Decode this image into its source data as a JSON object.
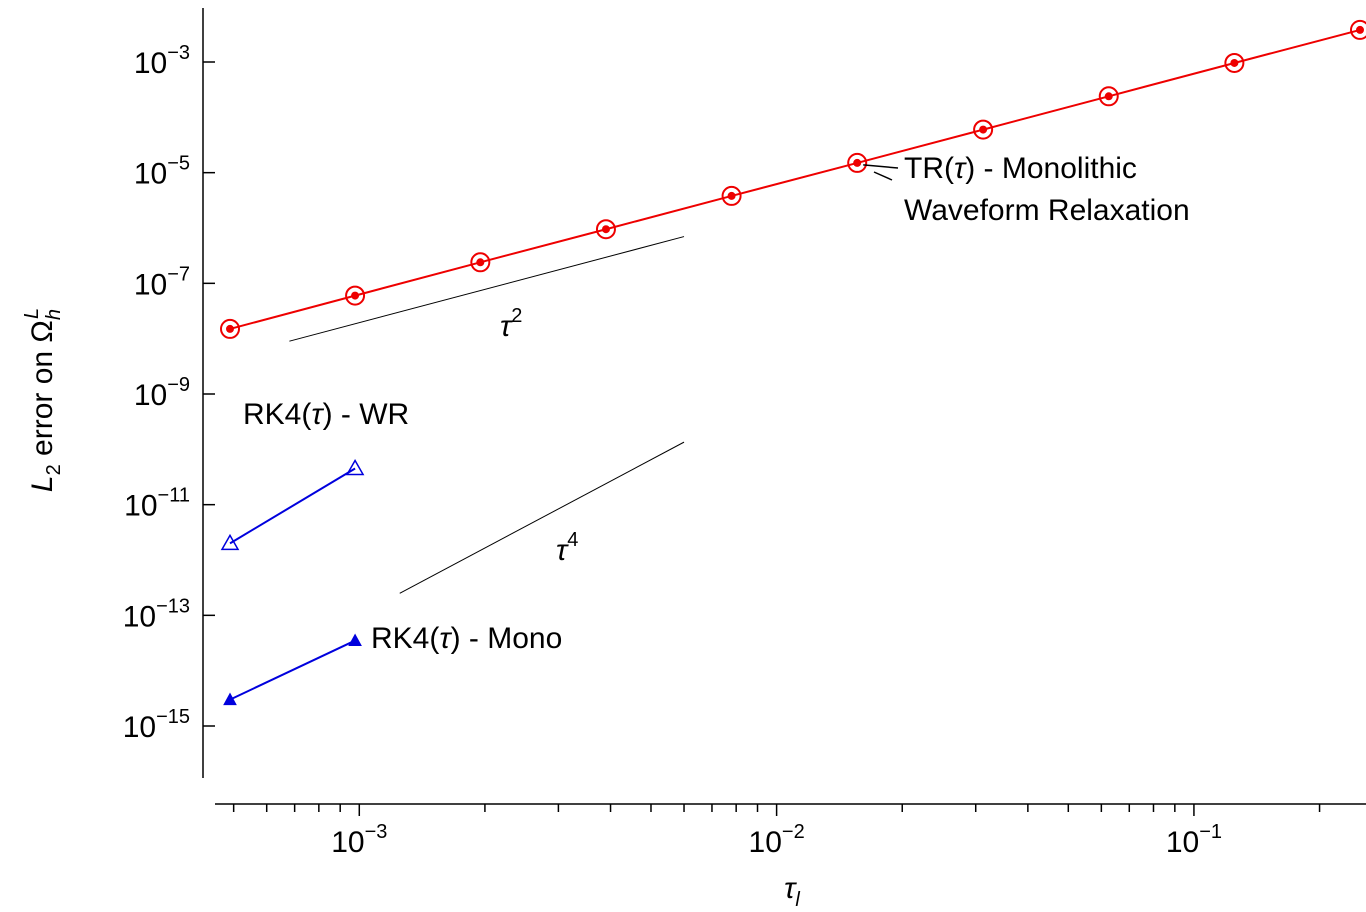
{
  "chart_data": {
    "type": "scatter",
    "title": "",
    "xlabel": "τ_l",
    "ylabel": "L_2 error on Ω_h^L",
    "xscale": "log",
    "yscale": "log",
    "xlim": [
      0.00044,
      0.26
    ],
    "ylim": [
      3e-17,
      0.01
    ],
    "grid": false,
    "x_ticks": [
      {
        "value": 0.001,
        "base": "10",
        "exp": "−3"
      },
      {
        "value": 0.01,
        "base": "10",
        "exp": "−2"
      },
      {
        "value": 0.1,
        "base": "10",
        "exp": "−1"
      }
    ],
    "y_ticks": [
      {
        "value": 0.001,
        "base": "10",
        "exp": "−3"
      },
      {
        "value": 1e-05,
        "base": "10",
        "exp": "−5"
      },
      {
        "value": 1e-07,
        "base": "10",
        "exp": "−7"
      },
      {
        "value": 1e-09,
        "base": "10",
        "exp": "−9"
      },
      {
        "value": 1e-11,
        "base": "10",
        "exp": "−11"
      },
      {
        "value": 1e-13,
        "base": "10",
        "exp": "−13"
      },
      {
        "value": 1e-15,
        "base": "10",
        "exp": "−15"
      }
    ],
    "series": [
      {
        "name": "TR(τ) - Monolithic Waveform Relaxation",
        "color": "#ee0000",
        "marker": "circle-dot",
        "x": [
          0.00049,
          0.000977,
          0.00195,
          0.0039,
          0.0078,
          0.0156,
          0.03125,
          0.0625,
          0.125,
          0.25
        ],
        "y": [
          1.5e-08,
          6e-08,
          2.4e-07,
          9.5e-07,
          3.8e-06,
          1.5e-05,
          6e-05,
          0.00024,
          0.00096,
          0.0038
        ]
      },
      {
        "name": "RK4(τ) - WR",
        "color": "#0000dd",
        "marker": "triangle-open",
        "x": [
          0.00049,
          0.000977
        ],
        "y": [
          2e-12,
          4.5e-11
        ]
      },
      {
        "name": "RK4(τ) - Mono",
        "color": "#0000dd",
        "marker": "triangle-filled",
        "x": [
          0.00049,
          0.000977
        ],
        "y": [
          3e-15,
          3.5e-14
        ]
      }
    ],
    "reference_lines": [
      {
        "label_base": "τ",
        "label_exp": "2",
        "x": [
          0.00068,
          0.006
        ],
        "y": [
          9e-09,
          7e-07
        ]
      },
      {
        "label_base": "τ",
        "label_exp": "4",
        "x": [
          0.00125,
          0.006
        ],
        "y": [
          2.5e-13,
          1.35e-10
        ]
      }
    ],
    "annotations": {
      "tr_line1": "TR(τ) - Monolithic",
      "tr_line2": "Waveform Relaxation",
      "rk4_wr": "RK4(τ) - WR",
      "rk4_mono": "RK4(τ) - Mono"
    }
  }
}
